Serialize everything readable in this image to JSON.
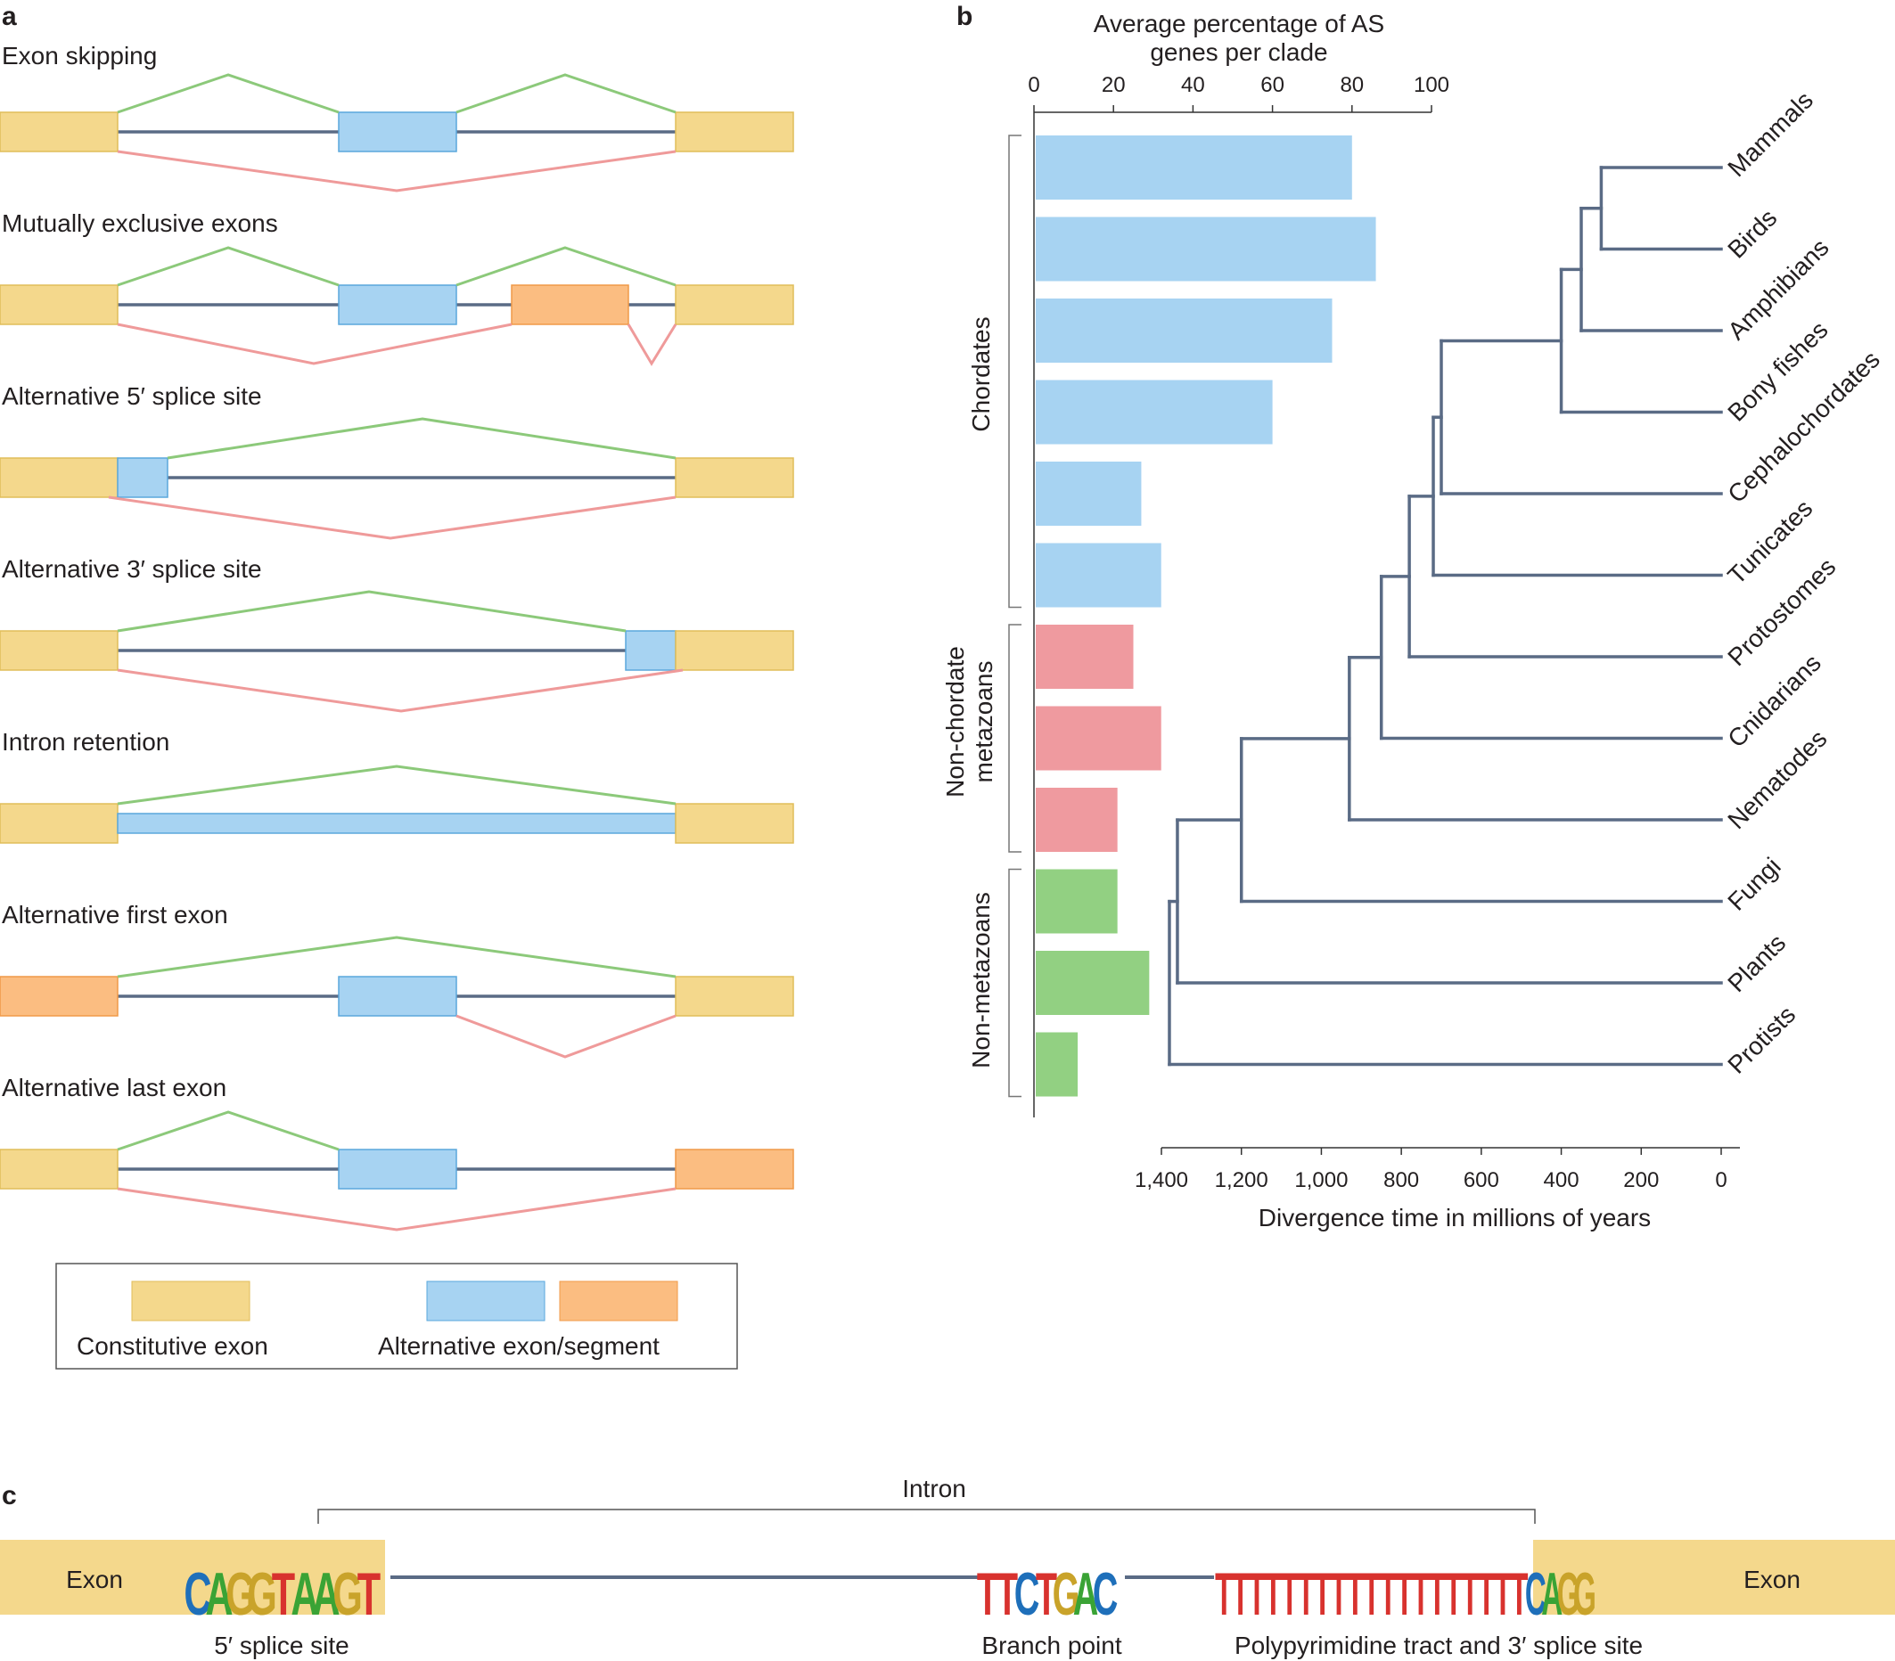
{
  "colors": {
    "constitutive": "#f4d88c",
    "constitutive_stroke": "#e0bd5a",
    "alternative": "#a7d3f2",
    "alternative_stroke": "#5aa7dc",
    "alternative_orange": "#fbbd81",
    "alternative_orange_stroke": "#f09a48",
    "inclusion_line": "#8cc97a",
    "skipping_line": "#ef9a9a",
    "intron_line": "#5a6b85",
    "bar_chordates": "#a7d3f2",
    "bar_nonchordate": "#ef9a9f",
    "bar_nonmetazoan": "#92d082",
    "tree": "#5a6b85"
  },
  "panel_a": {
    "letter": "a",
    "events": [
      {
        "label": "Exon skipping",
        "type": "exon_skipping"
      },
      {
        "label": "Mutually exclusive exons",
        "type": "mutually_exclusive"
      },
      {
        "label": "Alternative 5′ splice site",
        "type": "alt5"
      },
      {
        "label": "Alternative 3′ splice site",
        "type": "alt3"
      },
      {
        "label": "Intron retention",
        "type": "intron_retention"
      },
      {
        "label": "Alternative first exon",
        "type": "alt_first"
      },
      {
        "label": "Alternative last exon",
        "type": "alt_last"
      }
    ],
    "legend": {
      "constitutive": "Constitutive exon",
      "alternative": "Alternative exon/segment"
    }
  },
  "panel_b": {
    "letter": "b",
    "top_axis_title_line1": "Average percentage of AS",
    "top_axis_title_line2": "genes per clade",
    "bottom_axis_title": "Divergence time in millions of years",
    "group_labels": {
      "chordates": "Chordates",
      "nonchordate_line1": "Non-chordate",
      "nonchordate_line2": "metazoans",
      "nonmetazoans": "Non-metazoans"
    }
  },
  "chart_data": {
    "type": "bar",
    "orientation": "horizontal",
    "xlabel": "Average percentage of AS genes per clade",
    "xlim": [
      0,
      100
    ],
    "x_ticks": [
      "0",
      "20",
      "40",
      "60",
      "80",
      "100"
    ],
    "categories": [
      "Mammals",
      "Birds",
      "Amphibians",
      "Bony fishes",
      "Cephalochordates",
      "Tunicates",
      "Protostomes",
      "Cnidarians",
      "Nematodes",
      "Fungi",
      "Plants",
      "Protists"
    ],
    "values": [
      80,
      86,
      75,
      60,
      27,
      32,
      25,
      32,
      21,
      21,
      29,
      11
    ],
    "groups": [
      "chordates",
      "chordates",
      "chordates",
      "chordates",
      "chordates",
      "chordates",
      "nonchordate",
      "nonchordate",
      "nonchordate",
      "nonmetazoans",
      "nonmetazoans",
      "nonmetazoans"
    ],
    "tree": {
      "xlabel": "Divergence time in millions of years",
      "xlim": [
        1400,
        0
      ],
      "x_ticks": [
        "1,400",
        "1,200",
        "1,000",
        "800",
        "600",
        "400",
        "200",
        "0"
      ],
      "node_times": {
        "mammals_birds": 300,
        "plus_amphibians": 350,
        "plus_bony_fishes": 400,
        "plus_cephalochordates": 700,
        "plus_tunicates": 720,
        "plus_protostomes": 780,
        "plus_cnidarians": 850,
        "plus_nematodes": 930,
        "plus_fungi": 1200,
        "plus_plants": 1360,
        "plus_protists": 1380
      }
    }
  },
  "panel_c": {
    "letter": "c",
    "intron_label": "Intron",
    "exon_left": "Exon",
    "exon_right": "Exon",
    "five_prime_label": "5′ splice site",
    "branch_label": "Branch point",
    "ppt_label": "Polypyrimidine tract and 3′ splice site",
    "five_prime_seq": [
      "C",
      "A",
      "G",
      "G",
      "T",
      "A",
      "A",
      "G",
      "T"
    ],
    "branch_seq": [
      "T",
      "T",
      "C",
      "T",
      "G",
      "A",
      "C"
    ],
    "ppt_seq": [
      "T",
      "T",
      "T",
      "T",
      "T",
      "T",
      "T",
      "T",
      "T",
      "T",
      "T",
      "T",
      "T",
      "T",
      "T",
      "T",
      "T",
      "T",
      "T",
      "C",
      "A",
      "G",
      "G"
    ],
    "base_colors": {
      "A": "#3aa335",
      "C": "#1e6fba",
      "G": "#c9a32a",
      "T": "#d8322e"
    }
  }
}
